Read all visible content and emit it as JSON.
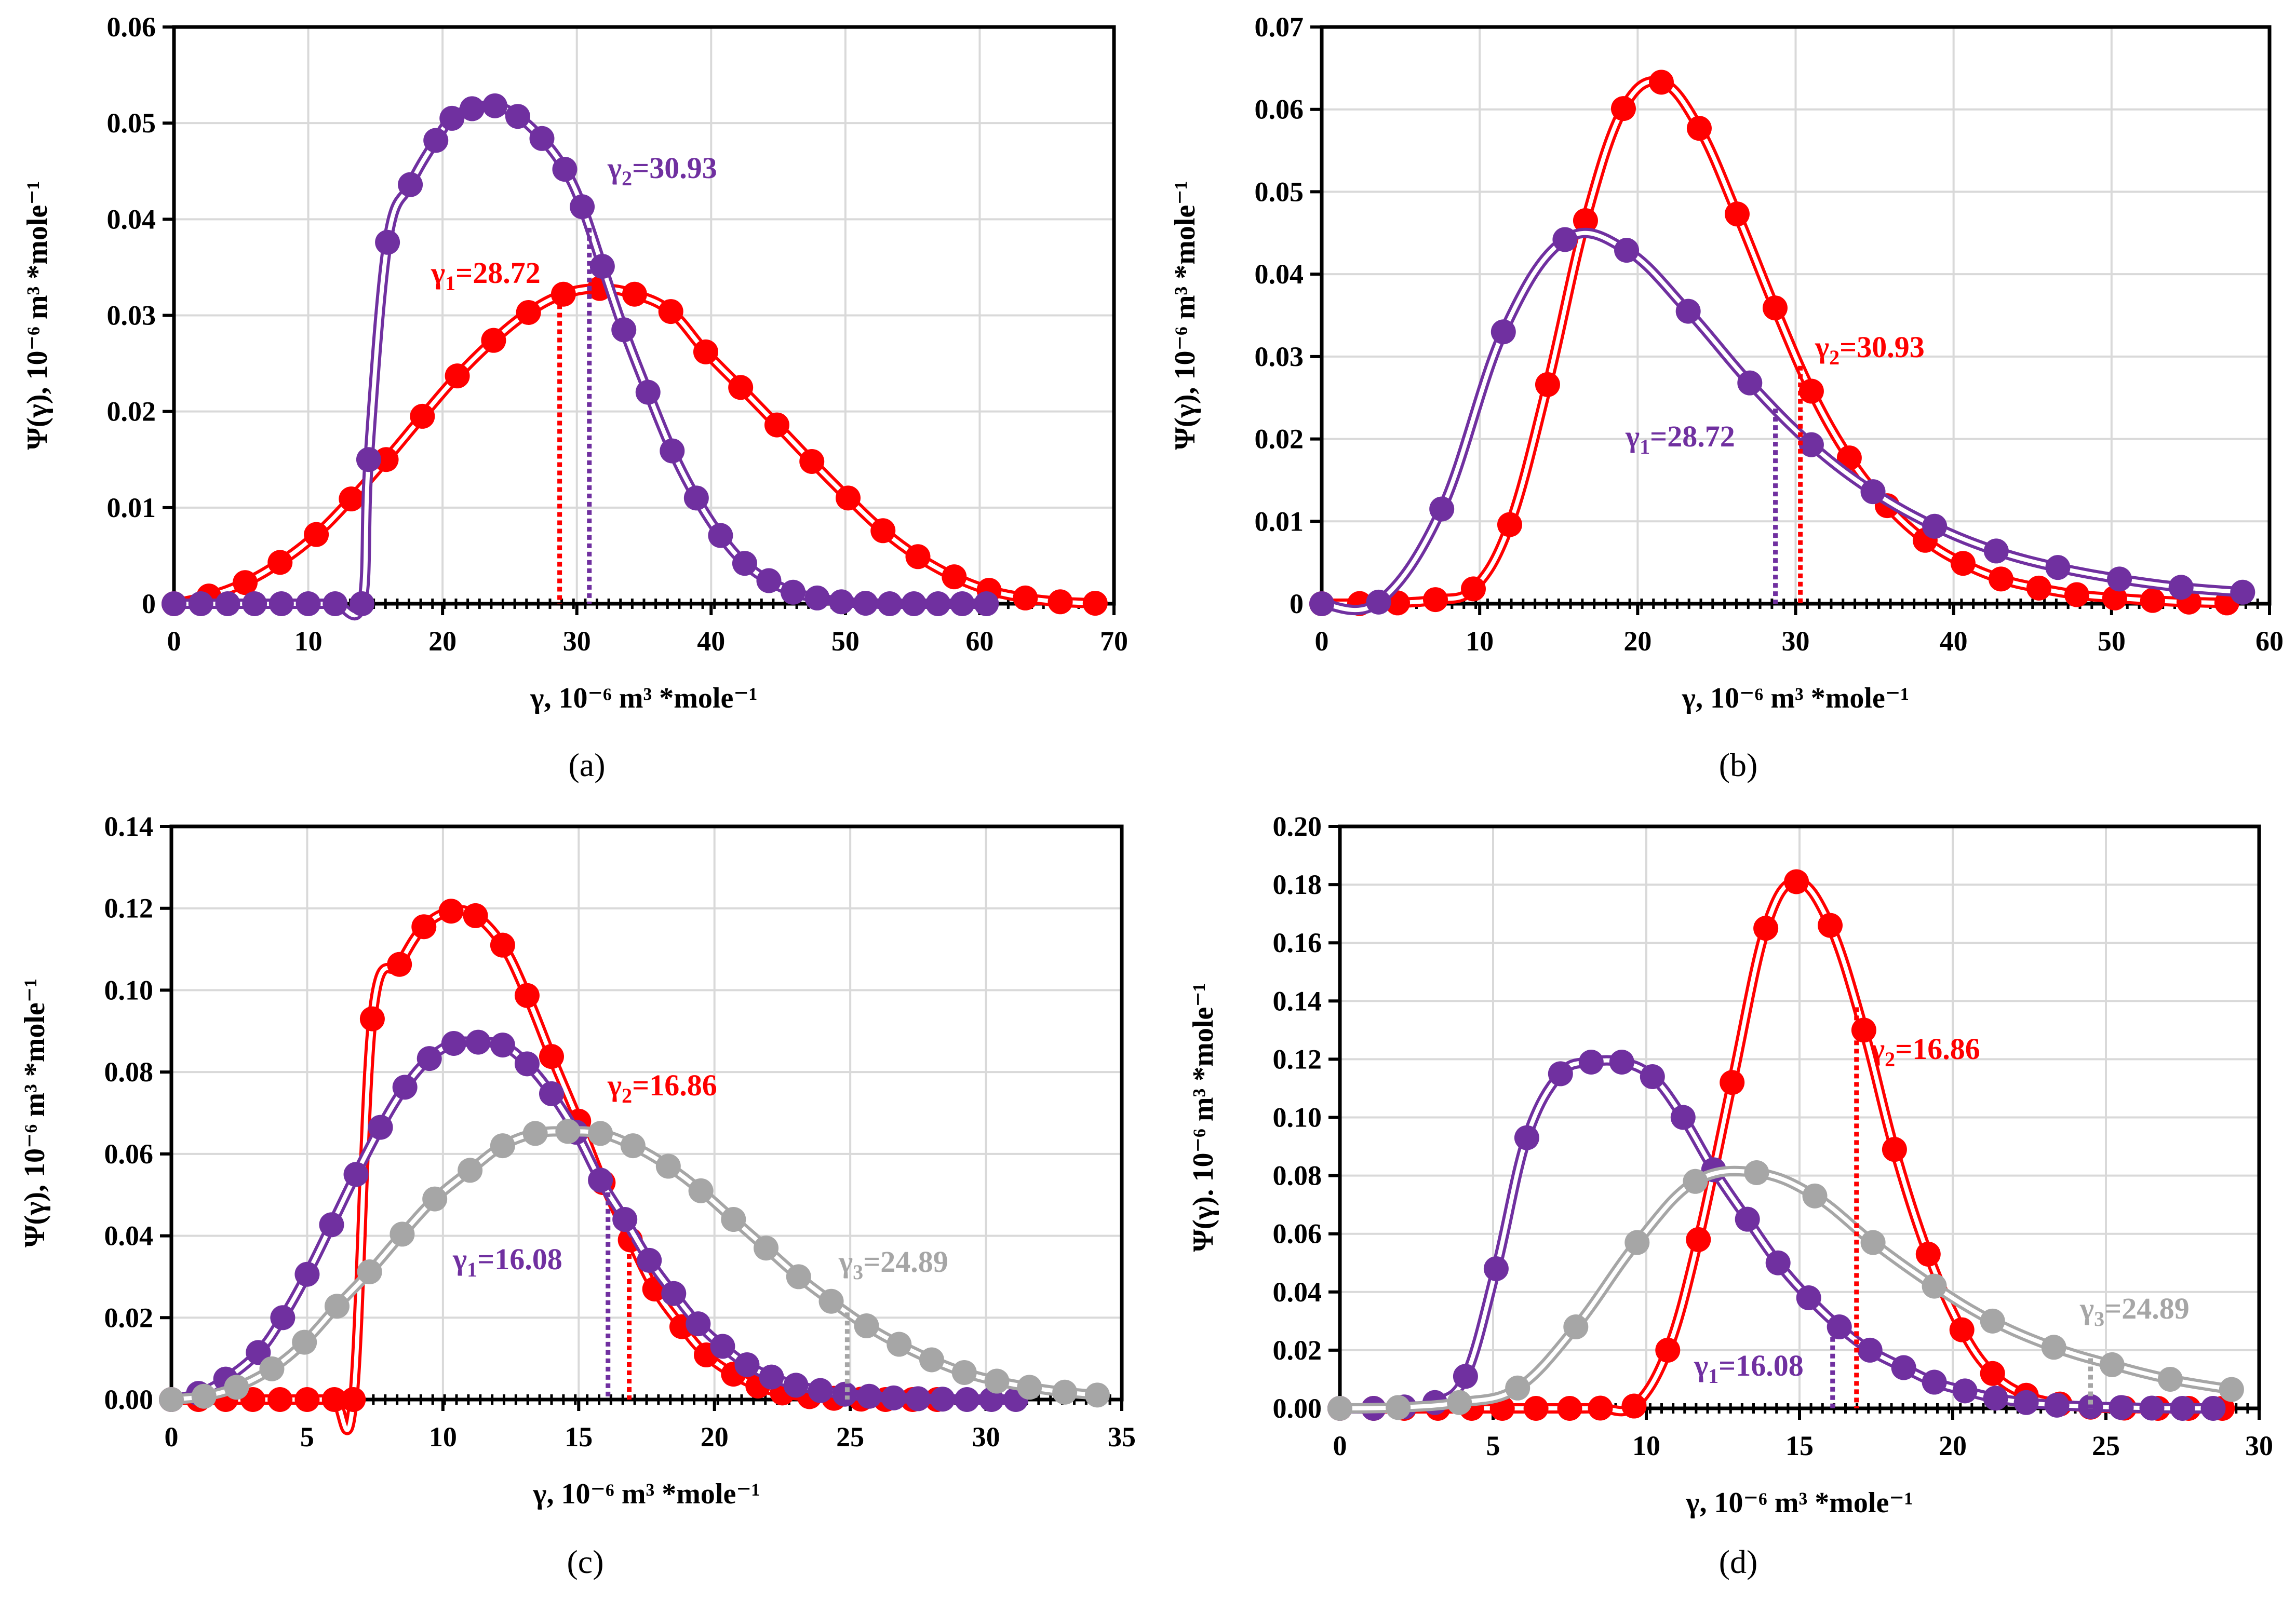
{
  "colors": {
    "red": "#ff0000",
    "purple": "#7030a0",
    "gray": "#a6a6a6",
    "grid": "#d9d9d9",
    "axis": "#000000"
  },
  "chart_data": [
    {
      "id": "a",
      "type": "line",
      "caption": "(a)",
      "xlabel": "γ, 10⁻⁶ m³ *mole⁻¹",
      "ylabel": "Ψ(γ), 10⁻⁶ m³ *mole⁻¹",
      "xlim": [
        0,
        70
      ],
      "ylim": [
        0,
        0.06
      ],
      "xticks": [
        0,
        10,
        20,
        30,
        40,
        50,
        60,
        70
      ],
      "xtick_labels": [
        "0",
        "10",
        "20",
        "30",
        "40",
        "50",
        "60",
        "70"
      ],
      "yticks": [
        0,
        0.01,
        0.02,
        0.03,
        0.04,
        0.05,
        0.06
      ],
      "ytick_labels": [
        "0",
        "0.01",
        "0.02",
        "0.03",
        "0.04",
        "0.05",
        "0.06"
      ],
      "grid": true,
      "series": [
        {
          "color_key": "red",
          "x": [
            0,
            2.6,
            5.3,
            7.9,
            10.6,
            13.2,
            15.8,
            18.5,
            21.1,
            23.8,
            26.4,
            29.0,
            31.7,
            34.3,
            37.0,
            39.6,
            42.2,
            44.9,
            47.5,
            50.2,
            52.8,
            55.4,
            58.1,
            60.7,
            63.4,
            66.0,
            68.6
          ],
          "y": [
            0,
            0.0008,
            0.0022,
            0.0043,
            0.0072,
            0.0109,
            0.015,
            0.0195,
            0.0237,
            0.0274,
            0.0303,
            0.0322,
            0.0328,
            0.0322,
            0.0304,
            0.0262,
            0.0225,
            0.0186,
            0.0148,
            0.011,
            0.0076,
            0.0049,
            0.0028,
            0.0014,
            0.0006,
            0.0002,
            5e-05
          ]
        },
        {
          "color_key": "purple",
          "x": [
            0,
            2,
            4,
            6,
            8,
            10,
            12,
            14,
            14.5,
            15.9,
            17.6,
            19.5,
            20.7,
            22.2,
            23.9,
            25.6,
            27.4,
            29.1,
            30.4,
            31.9,
            33.5,
            35.3,
            37.1,
            38.9,
            40.7,
            42.5,
            44.3,
            46.1,
            47.9,
            49.7,
            51.5,
            53.3,
            55.1,
            56.9,
            58.7,
            60.5
          ],
          "y": [
            0,
            0,
            0,
            0,
            0,
            0,
            0,
            0,
            0.015,
            0.0376,
            0.0436,
            0.0482,
            0.0505,
            0.0515,
            0.0518,
            0.0507,
            0.0484,
            0.0452,
            0.0413,
            0.0351,
            0.0285,
            0.022,
            0.0159,
            0.011,
            0.0071,
            0.0042,
            0.0024,
            0.0012,
            0.0006,
            0.0002,
            5e-05,
            0,
            0,
            0,
            0,
            0
          ]
        }
      ],
      "annotations": [
        {
          "text_main": "γ",
          "text_sub": "1",
          "text_val": "=28.72",
          "x": 28.72,
          "color_key": "red"
        },
        {
          "text_main": "γ",
          "text_sub": "2",
          "text_val": "=30.93",
          "x": 30.93,
          "color_key": "purple"
        }
      ]
    },
    {
      "id": "b",
      "type": "line",
      "caption": "(b)",
      "xlabel": "γ, 10⁻⁶ m³ *mole⁻¹",
      "ylabel": "Ψ(γ), 10⁻⁶ m³ *mole⁻¹",
      "xlim": [
        0,
        60
      ],
      "ylim": [
        0,
        0.07
      ],
      "xticks": [
        0,
        10,
        20,
        30,
        40,
        50,
        60
      ],
      "xtick_labels": [
        "0",
        "10",
        "20",
        "30",
        "40",
        "50",
        "60"
      ],
      "yticks": [
        0,
        0.01,
        0.02,
        0.03,
        0.04,
        0.05,
        0.06,
        0.07
      ],
      "ytick_labels": [
        "0",
        "0.01",
        "0.02",
        "0.03",
        "0.04",
        "0.05",
        "0.06",
        "0.07"
      ],
      "grid": true,
      "series": [
        {
          "color_key": "red",
          "x": [
            0,
            2.4,
            4.8,
            7.2,
            9.6,
            11.9,
            14.3,
            16.7,
            19.1,
            21.5,
            23.9,
            26.3,
            28.7,
            31.0,
            33.4,
            35.8,
            38.2,
            40.6,
            43.0,
            45.4,
            47.8,
            50.2,
            52.6,
            54.9,
            57.3
          ],
          "y": [
            0,
            2e-05,
            0.0001,
            0.0005,
            0.0018,
            0.0096,
            0.0266,
            0.0465,
            0.0601,
            0.0633,
            0.0577,
            0.0473,
            0.0359,
            0.0258,
            0.0177,
            0.0119,
            0.0077,
            0.0049,
            0.003,
            0.0019,
            0.0011,
            0.0007,
            0.0004,
            0.0002,
            0.0001
          ]
        },
        {
          "color_key": "purple",
          "x": [
            0,
            3.6,
            7.6,
            11.5,
            15.4,
            19.3,
            23.2,
            27.1,
            31.0,
            34.9,
            38.8,
            42.7,
            46.6,
            50.5,
            54.4,
            58.3
          ],
          "y": [
            0,
            0.0002,
            0.0115,
            0.033,
            0.0442,
            0.0429,
            0.0355,
            0.0268,
            0.0193,
            0.0136,
            0.0094,
            0.0064,
            0.0044,
            0.003,
            0.002,
            0.0014
          ]
        }
      ],
      "annotations": [
        {
          "text_main": "γ",
          "text_sub": "1",
          "text_val": "=28.72",
          "x": 28.72,
          "color_key": "purple"
        },
        {
          "text_main": "γ",
          "text_sub": "2",
          "text_val": "=30.93",
          "x": 30.3,
          "color_key": "red"
        }
      ]
    },
    {
      "id": "c",
      "type": "line",
      "caption": "(c)",
      "xlabel": "γ, 10⁻⁶ m³ *mole⁻¹",
      "ylabel": "Ψ(γ), 10⁻⁶ m³ *mole⁻¹",
      "xlim": [
        0,
        35
      ],
      "ylim": [
        0,
        0.14
      ],
      "xticks": [
        0,
        5,
        10,
        15,
        20,
        25,
        30,
        35
      ],
      "xtick_labels": [
        "0",
        "5",
        "10",
        "15",
        "20",
        "25",
        "30",
        "35"
      ],
      "yticks": [
        0,
        0.02,
        0.04,
        0.06,
        0.08,
        0.1,
        0.12,
        0.14
      ],
      "ytick_labels": [
        "0.00",
        "0.02",
        "0.04",
        "0.06",
        "0.08",
        "0.10",
        "0.12",
        "0.14"
      ],
      "grid": true,
      "series": [
        {
          "color_key": "red",
          "x": [
            0,
            1.0,
            2.0,
            3.0,
            4.0,
            5.0,
            6.0,
            6.7,
            7.4,
            8.4,
            9.3,
            10.3,
            11.2,
            12.2,
            13.1,
            14.0,
            15.0,
            15.9,
            16.9,
            17.8,
            18.8,
            19.7,
            20.7,
            21.6,
            22.5,
            23.5,
            24.4,
            25.4,
            26.3,
            27.3,
            28.2
          ],
          "y": [
            0,
            0,
            0,
            0,
            0,
            0,
            0,
            0,
            0.093,
            0.1063,
            0.1155,
            0.1193,
            0.1182,
            0.111,
            0.0987,
            0.0838,
            0.068,
            0.053,
            0.039,
            0.027,
            0.0178,
            0.0109,
            0.0062,
            0.0033,
            0.0016,
            0.0007,
            0.0003,
            0.0001,
            0,
            0,
            0
          ]
        },
        {
          "color_key": "purple",
          "x": [
            0,
            1.0,
            2.0,
            3.2,
            4.1,
            5.0,
            5.9,
            6.8,
            7.7,
            8.6,
            9.5,
            10.4,
            11.3,
            12.2,
            13.1,
            14.0,
            14.9,
            15.8,
            16.7,
            17.6,
            18.5,
            19.4,
            20.3,
            21.2,
            22.1,
            23.0,
            23.9,
            24.8,
            25.7,
            26.6,
            27.5,
            28.4,
            29.3,
            30.2,
            31.1
          ],
          "y": [
            0,
            0.0015,
            0.005,
            0.0115,
            0.02,
            0.0306,
            0.0427,
            0.055,
            0.0665,
            0.0763,
            0.0833,
            0.087,
            0.0873,
            0.0866,
            0.082,
            0.0747,
            0.0653,
            0.0536,
            0.044,
            0.034,
            0.0259,
            0.0185,
            0.013,
            0.0085,
            0.0055,
            0.0035,
            0.0022,
            0.0013,
            0.0008,
            0.0004,
            0.0002,
            0.0001,
            0,
            0,
            0
          ]
        },
        {
          "color_key": "gray",
          "x": [
            0,
            1.2,
            2.4,
            3.7,
            4.9,
            6.1,
            7.3,
            8.5,
            9.7,
            11.0,
            12.2,
            13.4,
            14.6,
            15.8,
            17.0,
            18.3,
            19.5,
            20.7,
            21.9,
            23.1,
            24.3,
            25.6,
            26.8,
            28.0,
            29.2,
            30.4,
            31.6,
            32.9,
            34.1
          ],
          "y": [
            0,
            0.0008,
            0.003,
            0.0075,
            0.014,
            0.0228,
            0.0312,
            0.0404,
            0.049,
            0.056,
            0.062,
            0.065,
            0.0655,
            0.065,
            0.062,
            0.057,
            0.051,
            0.044,
            0.037,
            0.03,
            0.024,
            0.018,
            0.0135,
            0.0097,
            0.0066,
            0.0045,
            0.003,
            0.0018,
            0.0011
          ]
        }
      ],
      "annotations": [
        {
          "text_main": "γ",
          "text_sub": "1",
          "text_val": "=16.08",
          "x": 16.08,
          "color_key": "purple"
        },
        {
          "text_main": "γ",
          "text_sub": "2",
          "text_val": "=16.86",
          "x": 16.86,
          "color_key": "red"
        },
        {
          "text_main": "γ",
          "text_sub": "3",
          "text_val": "=24.89",
          "x": 24.89,
          "color_key": "gray"
        }
      ]
    },
    {
      "id": "d",
      "type": "line",
      "caption": "(d)",
      "xlabel": "γ, 10⁻⁶ m³ *mole⁻¹",
      "ylabel": "Ψ(γ). 10⁻⁶ m³ *mole⁻¹",
      "xlim": [
        0,
        30
      ],
      "ylim": [
        0,
        0.2
      ],
      "xticks": [
        0,
        5,
        10,
        15,
        20,
        25,
        30
      ],
      "xtick_labels": [
        "0",
        "5",
        "10",
        "15",
        "20",
        "25",
        "30"
      ],
      "yticks": [
        0,
        0.02,
        0.04,
        0.06,
        0.08,
        0.1,
        0.12,
        0.14,
        0.16,
        0.18,
        0.2
      ],
      "ytick_labels": [
        "0.00",
        "0.02",
        "0.04",
        "0.06",
        "0.08",
        "0.10",
        "0.12",
        "0.14",
        "0.16",
        "0.18",
        "0.20"
      ],
      "grid": true,
      "series": [
        {
          "color_key": "red",
          "x": [
            0,
            1.1,
            2.1,
            3.2,
            4.3,
            5.3,
            6.4,
            7.5,
            8.5,
            9.6,
            10.7,
            11.7,
            12.8,
            13.9,
            14.9,
            16.0,
            17.1,
            18.1,
            19.2,
            20.3,
            21.3,
            22.4,
            23.5,
            24.5,
            25.6,
            26.7,
            27.7,
            28.8
          ],
          "y": [
            0,
            0,
            0,
            0,
            0,
            0,
            0,
            0,
            0.0001,
            0.0008,
            0.02,
            0.058,
            0.112,
            0.165,
            0.181,
            0.166,
            0.13,
            0.089,
            0.053,
            0.027,
            0.012,
            0.0045,
            0.0015,
            0.0004,
            0.0001,
            0,
            0,
            0
          ]
        },
        {
          "color_key": "purple",
          "x": [
            0,
            1.1,
            2.1,
            3.1,
            4.1,
            5.1,
            6.1,
            7.2,
            8.2,
            9.2,
            10.2,
            11.2,
            12.2,
            13.3,
            14.3,
            15.3,
            16.3,
            17.3,
            18.4,
            19.4,
            20.4,
            21.4,
            22.4,
            23.4,
            24.5,
            25.5,
            26.5,
            27.5,
            28.5
          ],
          "y": [
            0,
            0,
            0.0005,
            0.002,
            0.011,
            0.048,
            0.093,
            0.115,
            0.119,
            0.119,
            0.114,
            0.1,
            0.082,
            0.065,
            0.05,
            0.038,
            0.028,
            0.02,
            0.014,
            0.009,
            0.006,
            0.0035,
            0.002,
            0.0011,
            0.0006,
            0.0003,
            0.0001,
            0,
            0
          ]
        },
        {
          "color_key": "gray",
          "x": [
            0,
            1.9,
            3.9,
            5.8,
            7.7,
            9.7,
            11.6,
            13.6,
            15.5,
            17.4,
            19.4,
            21.3,
            23.3,
            25.2,
            27.1,
            29.1
          ],
          "y": [
            0,
            0.0003,
            0.002,
            0.007,
            0.028,
            0.057,
            0.078,
            0.081,
            0.073,
            0.057,
            0.042,
            0.03,
            0.021,
            0.015,
            0.01,
            0.0065
          ]
        }
      ],
      "annotations": [
        {
          "text_main": "γ",
          "text_sub": "1",
          "text_val": "=16.08",
          "x": 16.08,
          "color_key": "purple"
        },
        {
          "text_main": "γ",
          "text_sub": "2",
          "text_val": "=16.86",
          "x": 16.86,
          "color_key": "red"
        },
        {
          "text_main": "γ",
          "text_sub": "3",
          "text_val": "=24.89",
          "x": 24.5,
          "color_key": "gray"
        }
      ]
    }
  ]
}
